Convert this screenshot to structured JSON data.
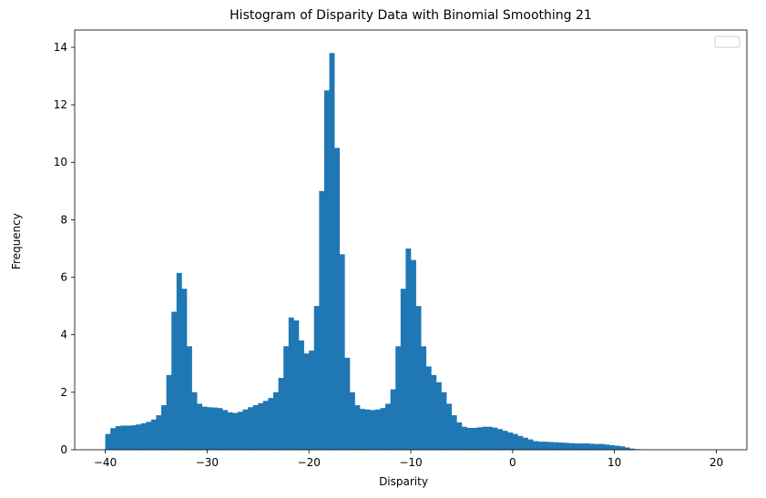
{
  "chart_data": {
    "type": "bar",
    "title": "Histogram of Disparity Data with Binomial Smoothing 21",
    "xlabel": "Disparity",
    "ylabel": "Frequency",
    "xlim": [
      -43.0,
      23.0
    ],
    "ylim": [
      0,
      14.6
    ],
    "x_ticks": [
      -40,
      -30,
      -20,
      -10,
      0,
      10,
      20
    ],
    "y_ticks": [
      0,
      2,
      4,
      6,
      8,
      10,
      12,
      14
    ],
    "bin_width": 0.5,
    "legend": "top-right (empty)",
    "grid": false,
    "bar_color": "#1f77b4",
    "x": [
      -40.0,
      -39.5,
      -39.0,
      -38.5,
      -38.0,
      -37.5,
      -37.0,
      -36.5,
      -36.0,
      -35.5,
      -35.0,
      -34.5,
      -34.0,
      -33.5,
      -33.0,
      -32.5,
      -32.0,
      -31.5,
      -31.0,
      -30.5,
      -30.0,
      -29.5,
      -29.0,
      -28.5,
      -28.0,
      -27.5,
      -27.0,
      -26.5,
      -26.0,
      -25.5,
      -25.0,
      -24.5,
      -24.0,
      -23.5,
      -23.0,
      -22.5,
      -22.0,
      -21.5,
      -21.0,
      -20.5,
      -20.0,
      -19.5,
      -19.0,
      -18.5,
      -18.0,
      -17.5,
      -17.0,
      -16.5,
      -16.0,
      -15.5,
      -15.0,
      -14.5,
      -14.0,
      -13.5,
      -13.0,
      -12.5,
      -12.0,
      -11.5,
      -11.0,
      -10.5,
      -10.0,
      -9.5,
      -9.0,
      -8.5,
      -8.0,
      -7.5,
      -7.0,
      -6.5,
      -6.0,
      -5.5,
      -5.0,
      -4.5,
      -4.0,
      -3.5,
      -3.0,
      -2.5,
      -2.0,
      -1.5,
      -1.0,
      -0.5,
      0.0,
      0.5,
      1.0,
      1.5,
      2.0,
      2.5,
      3.0,
      3.5,
      4.0,
      4.5,
      5.0,
      5.5,
      6.0,
      6.5,
      7.0,
      7.5,
      8.0,
      8.5,
      9.0,
      9.5,
      10.0,
      10.5,
      11.0,
      11.5,
      12.0,
      12.5,
      13.0,
      13.5,
      14.0,
      14.5,
      15.0,
      15.5,
      16.0,
      16.5,
      17.0,
      17.5,
      18.0,
      18.5,
      19.0,
      19.5,
      20.0
    ],
    "values": [
      0.55,
      0.75,
      0.82,
      0.84,
      0.84,
      0.85,
      0.88,
      0.92,
      0.97,
      1.05,
      1.2,
      1.55,
      2.6,
      4.8,
      6.15,
      5.6,
      3.6,
      2.0,
      1.6,
      1.5,
      1.48,
      1.47,
      1.45,
      1.38,
      1.3,
      1.28,
      1.32,
      1.4,
      1.48,
      1.55,
      1.62,
      1.7,
      1.8,
      2.0,
      2.5,
      3.6,
      4.6,
      4.5,
      3.8,
      3.35,
      3.45,
      5.0,
      9.0,
      12.5,
      13.8,
      10.5,
      6.8,
      3.2,
      2.0,
      1.55,
      1.42,
      1.4,
      1.38,
      1.4,
      1.45,
      1.6,
      2.1,
      3.6,
      5.6,
      7.0,
      6.6,
      5.0,
      3.6,
      2.9,
      2.6,
      2.35,
      2.0,
      1.6,
      1.2,
      0.95,
      0.8,
      0.76,
      0.76,
      0.78,
      0.8,
      0.8,
      0.77,
      0.72,
      0.66,
      0.6,
      0.55,
      0.48,
      0.42,
      0.36,
      0.3,
      0.28,
      0.28,
      0.27,
      0.26,
      0.25,
      0.24,
      0.23,
      0.22,
      0.22,
      0.22,
      0.21,
      0.2,
      0.2,
      0.18,
      0.16,
      0.14,
      0.12,
      0.08,
      0.04,
      0.02,
      0.01,
      0.005,
      0.003,
      0.002,
      0.001,
      0.001,
      0.001,
      0.001,
      0.001,
      0.001,
      0.001,
      0.001,
      0.001,
      0.001,
      0.001,
      0.001
    ]
  }
}
